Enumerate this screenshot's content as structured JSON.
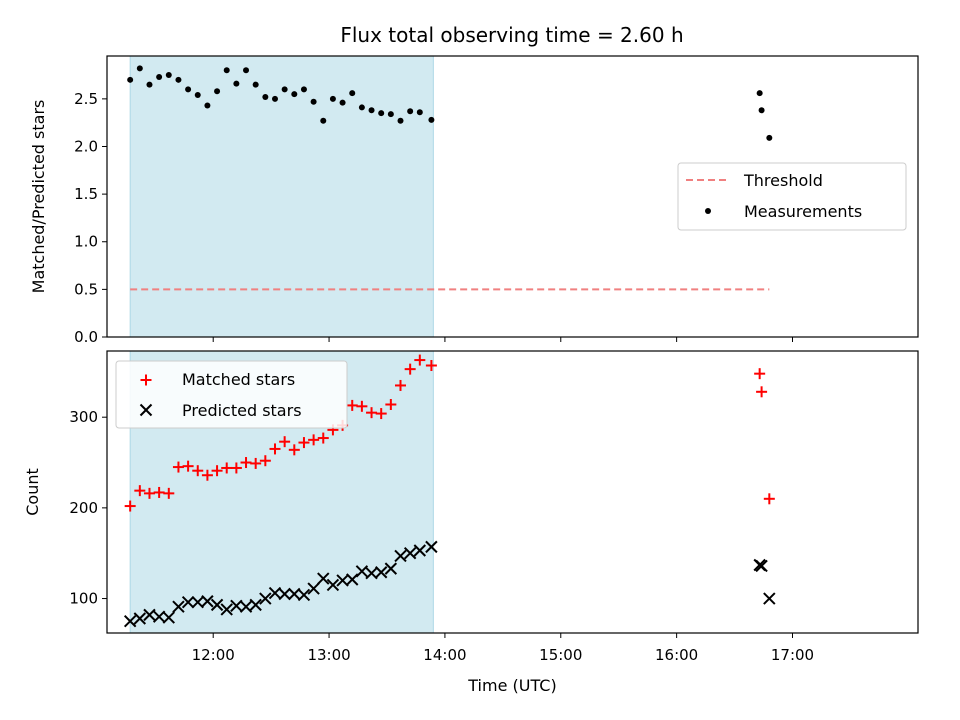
{
  "chart_data": [
    {
      "type": "scatter",
      "title": "Flux total observing time = 2.60 h",
      "xlabel": "",
      "ylabel": "Matched/Predicted stars",
      "xlim": [
        "11:05",
        "18:05"
      ],
      "ylim": [
        0,
        2.95
      ],
      "yticks": [
        "0.0",
        "0.5",
        "1.0",
        "1.5",
        "2.0",
        "2.5"
      ],
      "shaded_interval": [
        "11:17",
        "13:54"
      ],
      "shade_color": "#add8e6",
      "threshold": {
        "name": "Threshold",
        "value": 0.5,
        "x": [
          "11:17",
          "16:48"
        ],
        "color": "#f08080"
      },
      "legend_position": "center-right",
      "series": [
        {
          "name": "Measurements",
          "color": "#000000",
          "marker": "dot",
          "points": [
            [
              "11:17",
              2.7
            ],
            [
              "11:22",
              2.82
            ],
            [
              "11:27",
              2.65
            ],
            [
              "11:32",
              2.73
            ],
            [
              "11:37",
              2.75
            ],
            [
              "11:42",
              2.7
            ],
            [
              "11:47",
              2.6
            ],
            [
              "11:52",
              2.54
            ],
            [
              "11:57",
              2.43
            ],
            [
              "12:02",
              2.58
            ],
            [
              "12:07",
              2.8
            ],
            [
              "12:12",
              2.66
            ],
            [
              "12:17",
              2.8
            ],
            [
              "12:22",
              2.65
            ],
            [
              "12:27",
              2.52
            ],
            [
              "12:32",
              2.5
            ],
            [
              "12:37",
              2.6
            ],
            [
              "12:42",
              2.55
            ],
            [
              "12:47",
              2.6
            ],
            [
              "12:52",
              2.47
            ],
            [
              "12:57",
              2.27
            ],
            [
              "13:02",
              2.5
            ],
            [
              "13:07",
              2.46
            ],
            [
              "13:12",
              2.56
            ],
            [
              "13:17",
              2.41
            ],
            [
              "13:22",
              2.38
            ],
            [
              "13:27",
              2.35
            ],
            [
              "13:32",
              2.34
            ],
            [
              "13:37",
              2.27
            ],
            [
              "13:42",
              2.37
            ],
            [
              "13:47",
              2.36
            ],
            [
              "13:53",
              2.28
            ],
            [
              "16:43",
              2.56
            ],
            [
              "16:44",
              2.38
            ],
            [
              "16:48",
              2.09
            ]
          ]
        }
      ]
    },
    {
      "type": "scatter",
      "title": "",
      "xlabel": "Time (UTC)",
      "ylabel": "Count",
      "xlim": [
        "11:05",
        "18:05"
      ],
      "ylim": [
        62,
        373
      ],
      "yticks": [
        "100",
        "200",
        "300"
      ],
      "xticks": [
        "12:00",
        "13:00",
        "14:00",
        "15:00",
        "16:00",
        "17:00"
      ],
      "shaded_interval": [
        "11:17",
        "13:54"
      ],
      "shade_color": "#add8e6",
      "legend_position": "top-left",
      "series": [
        {
          "name": "Matched stars",
          "color": "#ff0000",
          "marker": "plus",
          "points": [
            [
              "11:17",
              202
            ],
            [
              "11:22",
              219
            ],
            [
              "11:27",
              216
            ],
            [
              "11:32",
              217
            ],
            [
              "11:37",
              216
            ],
            [
              "11:42",
              245
            ],
            [
              "11:47",
              246
            ],
            [
              "11:52",
              241
            ],
            [
              "11:57",
              236
            ],
            [
              "12:02",
              241
            ],
            [
              "12:07",
              244
            ],
            [
              "12:12",
              244
            ],
            [
              "12:17",
              250
            ],
            [
              "12:22",
              249
            ],
            [
              "12:27",
              252
            ],
            [
              "12:32",
              265
            ],
            [
              "12:37",
              273
            ],
            [
              "12:42",
              264
            ],
            [
              "12:47",
              272
            ],
            [
              "12:52",
              275
            ],
            [
              "12:57",
              277
            ],
            [
              "13:02",
              286
            ],
            [
              "13:07",
              291
            ],
            [
              "13:12",
              313
            ],
            [
              "13:17",
              312
            ],
            [
              "13:22",
              305
            ],
            [
              "13:27",
              304
            ],
            [
              "13:32",
              314
            ],
            [
              "13:37",
              335
            ],
            [
              "13:42",
              353
            ],
            [
              "13:47",
              363
            ],
            [
              "13:53",
              357
            ],
            [
              "16:43",
              348
            ],
            [
              "16:44",
              328
            ],
            [
              "16:48",
              210
            ]
          ]
        },
        {
          "name": "Predicted stars",
          "color": "#000000",
          "marker": "x",
          "points": [
            [
              "11:17",
              75
            ],
            [
              "11:22",
              78
            ],
            [
              "11:27",
              82
            ],
            [
              "11:32",
              80
            ],
            [
              "11:37",
              79
            ],
            [
              "11:42",
              91
            ],
            [
              "11:47",
              96
            ],
            [
              "11:52",
              96
            ],
            [
              "11:57",
              97
            ],
            [
              "12:02",
              93
            ],
            [
              "12:07",
              88
            ],
            [
              "12:12",
              92
            ],
            [
              "12:17",
              91
            ],
            [
              "12:22",
              93
            ],
            [
              "12:27",
              100
            ],
            [
              "12:32",
              106
            ],
            [
              "12:37",
              105
            ],
            [
              "12:42",
              105
            ],
            [
              "12:47",
              104
            ],
            [
              "12:52",
              111
            ],
            [
              "12:57",
              122
            ],
            [
              "13:02",
              115
            ],
            [
              "13:07",
              120
            ],
            [
              "13:12",
              121
            ],
            [
              "13:17",
              130
            ],
            [
              "13:22",
              128
            ],
            [
              "13:27",
              129
            ],
            [
              "13:32",
              133
            ],
            [
              "13:37",
              147
            ],
            [
              "13:42",
              150
            ],
            [
              "13:47",
              153
            ],
            [
              "13:53",
              157
            ],
            [
              "16:43",
              137
            ],
            [
              "16:44",
              136
            ],
            [
              "16:48",
              100
            ]
          ]
        }
      ]
    }
  ]
}
